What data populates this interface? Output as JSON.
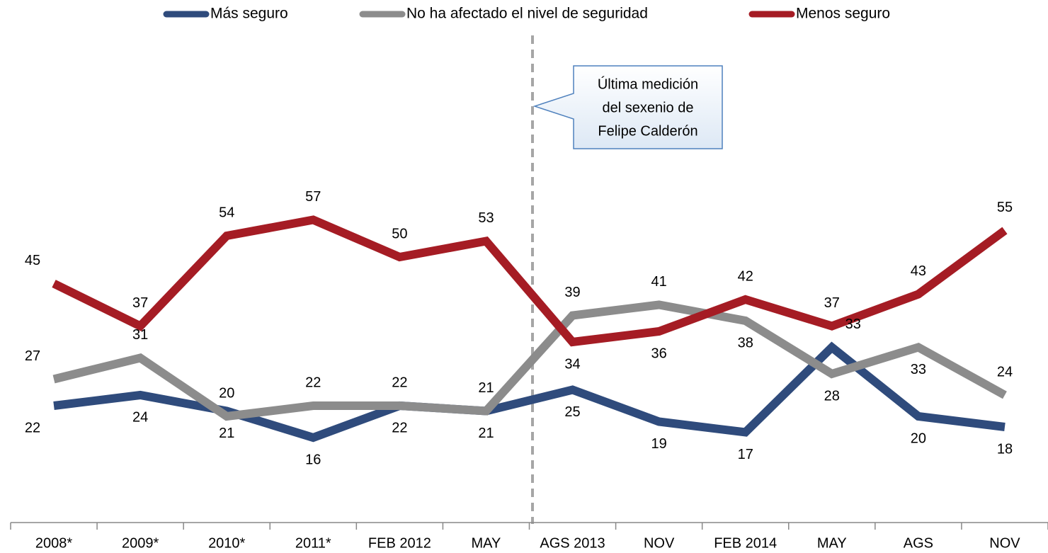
{
  "chart_data": {
    "type": "line",
    "categories": [
      "2008*",
      "2009*",
      "2010*",
      "2011*",
      "FEB 2012",
      "MAY",
      "AGS 2013",
      "NOV",
      "FEB 2014",
      "MAY",
      "AGS",
      "NOV"
    ],
    "series": [
      {
        "name": "Más seguro",
        "color": "#2f4b7c",
        "values": [
          22,
          24,
          21,
          16,
          22,
          21,
          25,
          19,
          17,
          33,
          20,
          18
        ]
      },
      {
        "name": "No ha afectado el nivel de seguridad",
        "color": "#8c8c8c",
        "values": [
          27,
          31,
          20,
          22,
          22,
          21,
          39,
          41,
          38,
          28,
          33,
          24
        ]
      },
      {
        "name": "Menos seguro",
        "color": "#a51c24",
        "values": [
          45,
          37,
          54,
          57,
          50,
          53,
          34,
          36,
          42,
          37,
          43,
          55
        ]
      }
    ],
    "ylim": [
      0,
      90
    ],
    "annotation": {
      "lines": [
        "Última medición",
        "del sexenio de",
        "Felipe Calderón"
      ]
    }
  }
}
